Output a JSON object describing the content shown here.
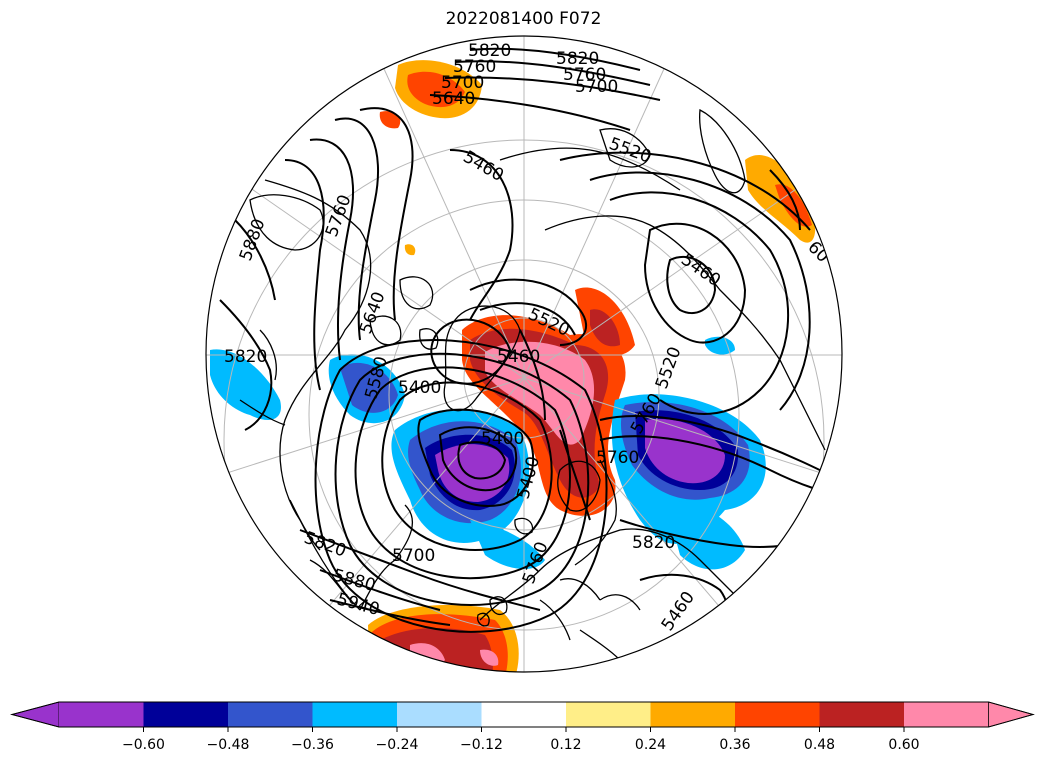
{
  "title": "2022081400 F072",
  "contour_labels": [
    "5820",
    "5760",
    "5700",
    "5640",
    "5820",
    "5760",
    "5700",
    "5520",
    "5460",
    "5460",
    "5520",
    "5520",
    "5460",
    "5400",
    "5400",
    "5580",
    "5640",
    "5760",
    "5880",
    "5820",
    "5820",
    "5700",
    "5880",
    "5940",
    "5760",
    "5820",
    "60",
    "5460",
    "5760",
    "5400",
    "5760"
  ],
  "colorbar": {
    "colors": [
      "#9933CC",
      "#000099",
      "#3355CC",
      "#00BBFF",
      "#AADDFF",
      "#FFFFFF",
      "#FFEE88",
      "#FFAA00",
      "#FF4400",
      "#BB2222",
      "#FF88AA"
    ],
    "extend_left": "#9933CC",
    "extend_right": "#FF88AA",
    "ticks": [
      "−0.60",
      "−0.48",
      "−0.36",
      "−0.24",
      "−0.12",
      "0.12",
      "0.24",
      "0.36",
      "0.48",
      "0.60"
    ]
  }
}
